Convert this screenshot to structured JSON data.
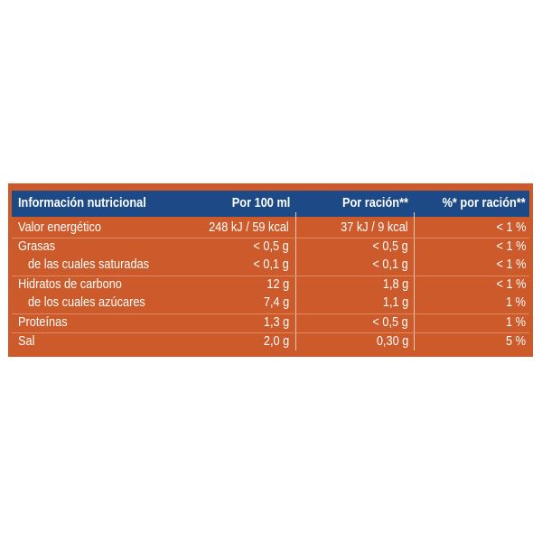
{
  "table": {
    "headers": [
      "Información nutricional",
      "Por 100 ml",
      "Por ración**",
      "%* por ración**"
    ],
    "rows": [
      {
        "label": "Valor energético",
        "per100": "248 kJ / 59 kcal",
        "perServing": "37 kJ / 9 kcal",
        "pct": "< 1 %"
      },
      {
        "label": "Grasas",
        "per100": "< 0,5 g",
        "perServing": "< 0,5 g",
        "pct": "< 1 %"
      },
      {
        "label": "de las cuales saturadas",
        "per100": "< 0,1 g",
        "perServing": "< 0,1 g",
        "pct": "< 1 %"
      },
      {
        "label": "Hidratos de carbono",
        "per100": "12 g",
        "perServing": "1,8 g",
        "pct": "< 1 %"
      },
      {
        "label": "de los cuales azúcares",
        "per100": "7,4 g",
        "perServing": "1,1 g",
        "pct": "1 %"
      },
      {
        "label": "Proteínas",
        "per100": "1,3 g",
        "perServing": "< 0,5 g",
        "pct": "1 %"
      },
      {
        "label": "Sal",
        "per100": "2,0 g",
        "perServing": "0,30 g",
        "pct": "5 %"
      }
    ]
  },
  "colors": {
    "panel": "#cd5a2a",
    "header": "#1d4a86",
    "text": "#ffffff"
  }
}
